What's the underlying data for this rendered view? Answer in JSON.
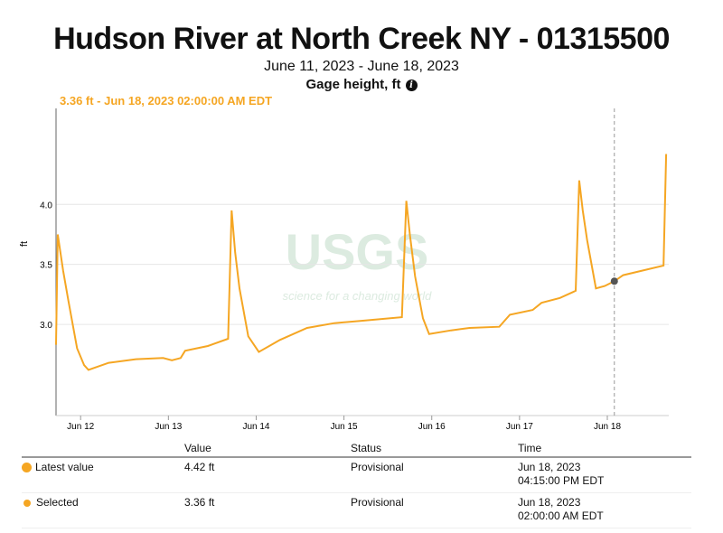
{
  "header": {
    "title": "Hudson River at North Creek NY - 01315500",
    "date_range": "June 11, 2023 - June 18, 2023",
    "parameter": "Gage height, ft",
    "info_icon": "info-icon"
  },
  "tooltip": "3.36 ft - Jun 18, 2023 02:00:00 AM EDT",
  "watermark": {
    "logo": "USGS",
    "tagline": "science for a changing world"
  },
  "colors": {
    "series": "#f5a623",
    "marker": "#555555"
  },
  "chart_data": {
    "type": "line",
    "title": "Hudson River at North Creek NY - 01315500",
    "xlabel": "",
    "ylabel": "ft",
    "x_unit": "days since Jun 11, 2023 00:00",
    "xlim": [
      0.72,
      7.7
    ],
    "ylim": [
      2.24,
      4.8
    ],
    "yticks": [
      {
        "v": 3.0,
        "label": "3.0"
      },
      {
        "v": 3.5,
        "label": "3.5"
      },
      {
        "v": 4.0,
        "label": "4.0"
      }
    ],
    "xticks": [
      {
        "v": 1,
        "label": "Jun 12"
      },
      {
        "v": 2,
        "label": "Jun 13"
      },
      {
        "v": 3,
        "label": "Jun 14"
      },
      {
        "v": 4,
        "label": "Jun 15"
      },
      {
        "v": 5,
        "label": "Jun 16"
      },
      {
        "v": 6,
        "label": "Jun 17"
      },
      {
        "v": 7,
        "label": "Jun 18"
      }
    ],
    "grid": true,
    "series": [
      {
        "name": "Gage height",
        "points": [
          [
            0.72,
            2.83
          ],
          [
            0.74,
            3.75
          ],
          [
            0.8,
            3.45
          ],
          [
            0.86,
            3.2
          ],
          [
            0.96,
            2.8
          ],
          [
            1.04,
            2.66
          ],
          [
            1.09,
            2.62
          ],
          [
            1.32,
            2.68
          ],
          [
            1.63,
            2.71
          ],
          [
            1.94,
            2.72
          ],
          [
            2.04,
            2.7
          ],
          [
            2.14,
            2.72
          ],
          [
            2.19,
            2.78
          ],
          [
            2.45,
            2.82
          ],
          [
            2.68,
            2.88
          ],
          [
            2.72,
            3.95
          ],
          [
            2.76,
            3.6
          ],
          [
            2.81,
            3.3
          ],
          [
            2.91,
            2.9
          ],
          [
            3.03,
            2.77
          ],
          [
            3.27,
            2.87
          ],
          [
            3.58,
            2.97
          ],
          [
            3.89,
            3.01
          ],
          [
            4.2,
            3.03
          ],
          [
            4.66,
            3.06
          ],
          [
            4.71,
            4.03
          ],
          [
            4.75,
            3.75
          ],
          [
            4.81,
            3.4
          ],
          [
            4.9,
            3.05
          ],
          [
            4.97,
            2.92
          ],
          [
            5.22,
            2.95
          ],
          [
            5.43,
            2.97
          ],
          [
            5.77,
            2.98
          ],
          [
            5.89,
            3.08
          ],
          [
            6.15,
            3.12
          ],
          [
            6.25,
            3.18
          ],
          [
            6.46,
            3.22
          ],
          [
            6.64,
            3.28
          ],
          [
            6.68,
            4.2
          ],
          [
            6.72,
            3.95
          ],
          [
            6.77,
            3.7
          ],
          [
            6.87,
            3.3
          ],
          [
            6.97,
            3.32
          ],
          [
            7.08,
            3.36
          ],
          [
            7.18,
            3.41
          ],
          [
            7.64,
            3.49
          ],
          [
            7.67,
            4.42
          ]
        ]
      }
    ],
    "selected": {
      "x": 7.08,
      "y": 3.36
    }
  },
  "table": {
    "headers": [
      "Value",
      "Status",
      "Time"
    ],
    "rows": [
      {
        "label": "Latest value",
        "value": "4.42 ft",
        "status": "Provisional",
        "date": "Jun 18, 2023",
        "time": "04:15:00 PM EDT"
      },
      {
        "label": "Selected",
        "value": "3.36 ft",
        "status": "Provisional",
        "date": "Jun 18, 2023",
        "time": "02:00:00 AM EDT"
      }
    ]
  }
}
